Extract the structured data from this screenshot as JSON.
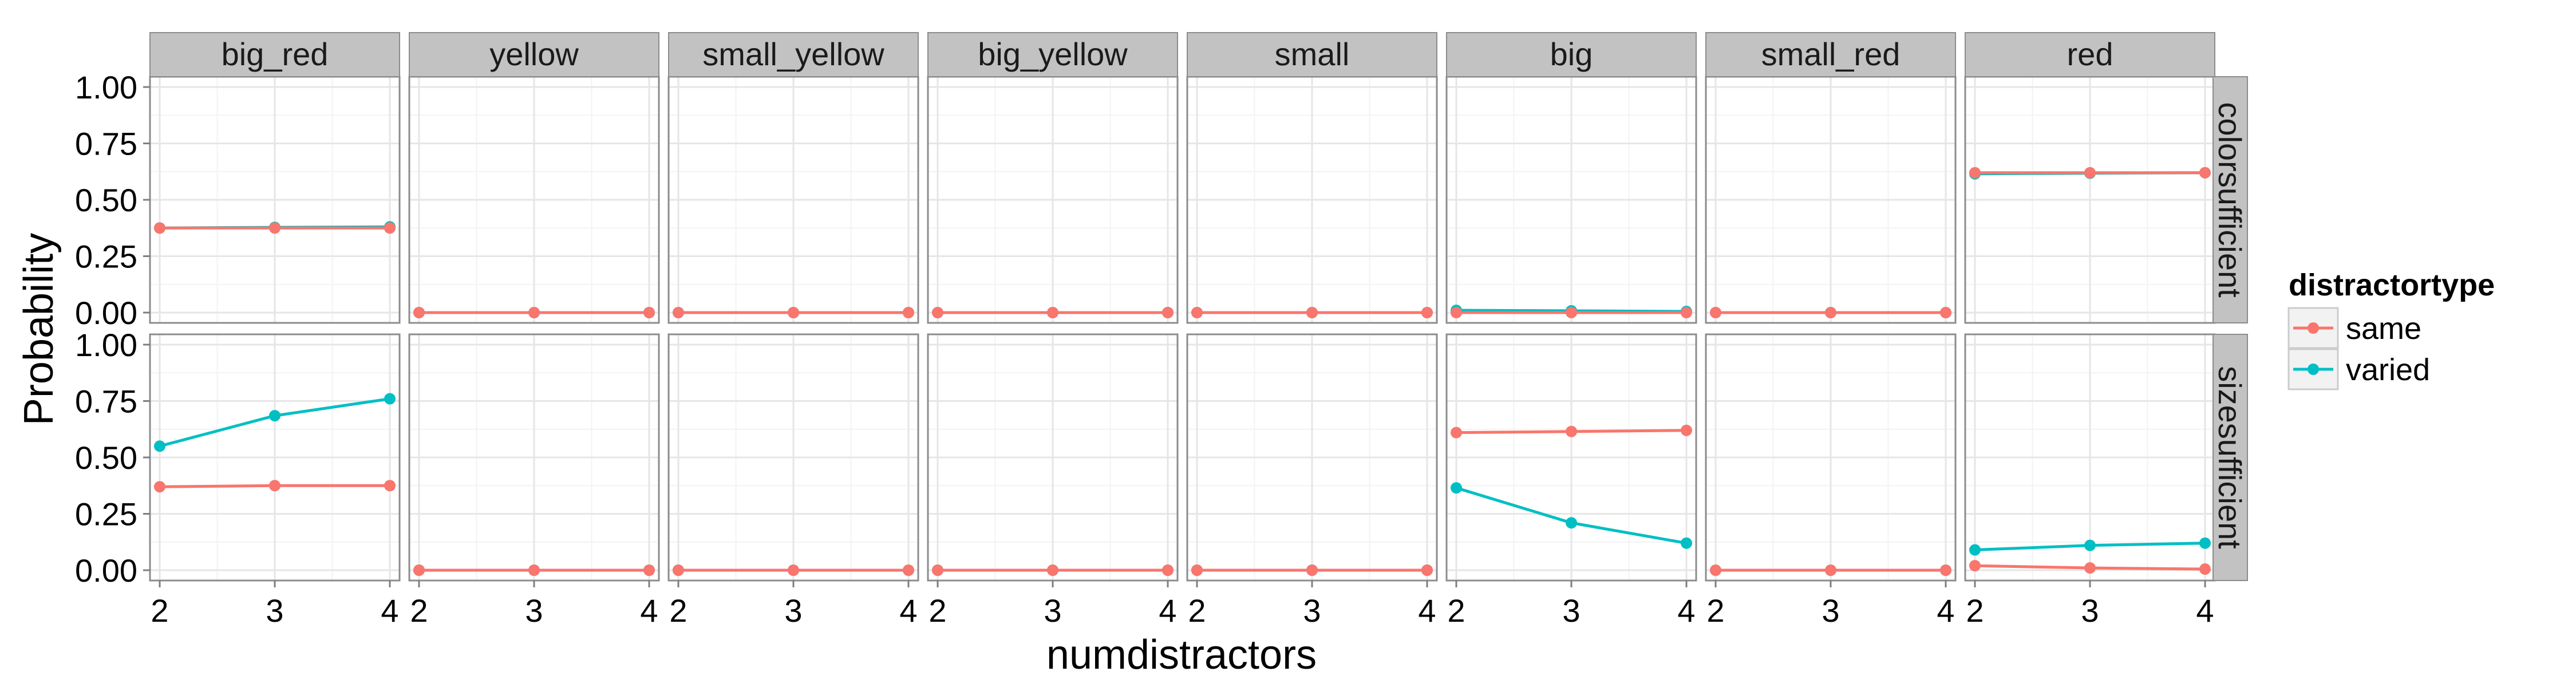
{
  "colors": {
    "same": "#F8766D",
    "varied": "#00BFC4",
    "strip": "#C2C2C2",
    "grid_major": "#E6E6E6",
    "grid_minor": "#F3F3F3",
    "panel_border": "#8C8C8C"
  },
  "chart_data": {
    "type": "line",
    "facet_grid": true,
    "xlabel": "numdistractors",
    "ylabel": "Probability",
    "x": [
      2,
      3,
      4
    ],
    "x_ticks": [
      "2",
      "3",
      "4"
    ],
    "xlim": [
      2,
      4
    ],
    "ylim": [
      0,
      1
    ],
    "y_ticks": [
      "0.00",
      "0.25",
      "0.50",
      "0.75",
      "1.00"
    ],
    "column_facets": [
      "big_red",
      "yellow",
      "small_yellow",
      "big_yellow",
      "small",
      "big",
      "small_red",
      "red"
    ],
    "row_facets": [
      "colorsufficient",
      "sizesufficient"
    ],
    "legend": {
      "title": "distractortype",
      "entries": [
        "same",
        "varied"
      ],
      "position": "right"
    },
    "grid": true,
    "panels": {
      "colorsufficient": {
        "big_red": {
          "same": [
            0.375,
            0.375,
            0.375
          ],
          "varied": [
            0.375,
            0.378,
            0.38
          ]
        },
        "yellow": {
          "same": [
            0.0,
            0.0,
            0.0
          ],
          "varied": [
            0.0,
            0.0,
            0.0
          ]
        },
        "small_yellow": {
          "same": [
            0.0,
            0.0,
            0.0
          ],
          "varied": [
            0.0,
            0.0,
            0.0
          ]
        },
        "big_yellow": {
          "same": [
            0.0,
            0.0,
            0.0
          ],
          "varied": [
            0.0,
            0.0,
            0.0
          ]
        },
        "small": {
          "same": [
            0.0,
            0.0,
            0.0
          ],
          "varied": [
            0.0,
            0.0,
            0.0
          ]
        },
        "big": {
          "same": [
            0.0,
            0.0,
            0.0
          ],
          "varied": [
            0.01,
            0.008,
            0.005
          ]
        },
        "small_red": {
          "same": [
            0.0,
            0.0,
            0.0
          ],
          "varied": [
            0.0,
            0.0,
            0.0
          ]
        },
        "red": {
          "same": [
            0.62,
            0.62,
            0.62
          ],
          "varied": [
            0.615,
            0.618,
            0.62
          ]
        }
      },
      "sizesufficient": {
        "big_red": {
          "same": [
            0.37,
            0.375,
            0.375
          ],
          "varied": [
            0.55,
            0.685,
            0.76
          ]
        },
        "yellow": {
          "same": [
            0.0,
            0.0,
            0.0
          ],
          "varied": [
            0.0,
            0.0,
            0.0
          ]
        },
        "small_yellow": {
          "same": [
            0.0,
            0.0,
            0.0
          ],
          "varied": [
            0.0,
            0.0,
            0.0
          ]
        },
        "big_yellow": {
          "same": [
            0.0,
            0.0,
            0.0
          ],
          "varied": [
            0.0,
            0.0,
            0.0
          ]
        },
        "small": {
          "same": [
            0.0,
            0.0,
            0.0
          ],
          "varied": [
            0.0,
            0.0,
            0.0
          ]
        },
        "big": {
          "same": [
            0.61,
            0.615,
            0.62
          ],
          "varied": [
            0.365,
            0.21,
            0.12
          ]
        },
        "small_red": {
          "same": [
            0.0,
            0.0,
            0.0
          ],
          "varied": [
            0.0,
            0.0,
            0.0
          ]
        },
        "red": {
          "same": [
            0.02,
            0.01,
            0.005
          ],
          "varied": [
            0.09,
            0.11,
            0.12
          ]
        }
      }
    }
  }
}
